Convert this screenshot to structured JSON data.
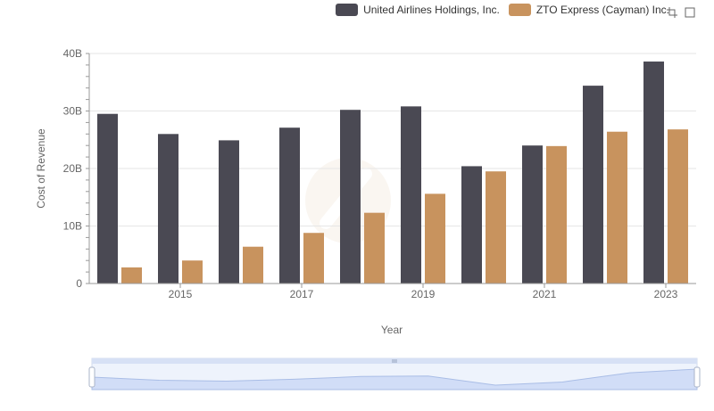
{
  "legend": {
    "items": [
      {
        "label": "United Airlines Holdings, Inc.",
        "color": "#4a4953"
      },
      {
        "label": "ZTO Express (Cayman) Inc.",
        "color": "#c8935e"
      }
    ]
  },
  "toolbox": {
    "icons": [
      "zoom-icon",
      "restore-icon"
    ]
  },
  "chart_data": {
    "type": "bar",
    "title": "",
    "xlabel": "Year",
    "ylabel": "Cost of Revenue",
    "categories": [
      "2014",
      "2015",
      "2016",
      "2017",
      "2018",
      "2019",
      "2020",
      "2021",
      "2022",
      "2023"
    ],
    "x_tick_labels": [
      "2015",
      "2017",
      "2019",
      "2021",
      "2023"
    ],
    "y_ticks": [
      0,
      10,
      20,
      30,
      40
    ],
    "y_tick_labels": [
      "0",
      "10B",
      "20B",
      "30B",
      "40B"
    ],
    "ylim": [
      0,
      40
    ],
    "y_unit": "B",
    "grid": true,
    "legend_position": "top-right",
    "series": [
      {
        "name": "United Airlines Holdings, Inc.",
        "color": "#4a4953",
        "values": [
          29.5,
          26.0,
          24.9,
          27.1,
          30.2,
          30.8,
          20.4,
          24.0,
          34.4,
          38.6
        ]
      },
      {
        "name": "ZTO Express (Cayman) Inc.",
        "color": "#c8935e",
        "values": [
          2.8,
          4.0,
          6.4,
          8.8,
          12.3,
          15.6,
          19.5,
          23.9,
          26.4,
          26.8
        ]
      }
    ]
  }
}
